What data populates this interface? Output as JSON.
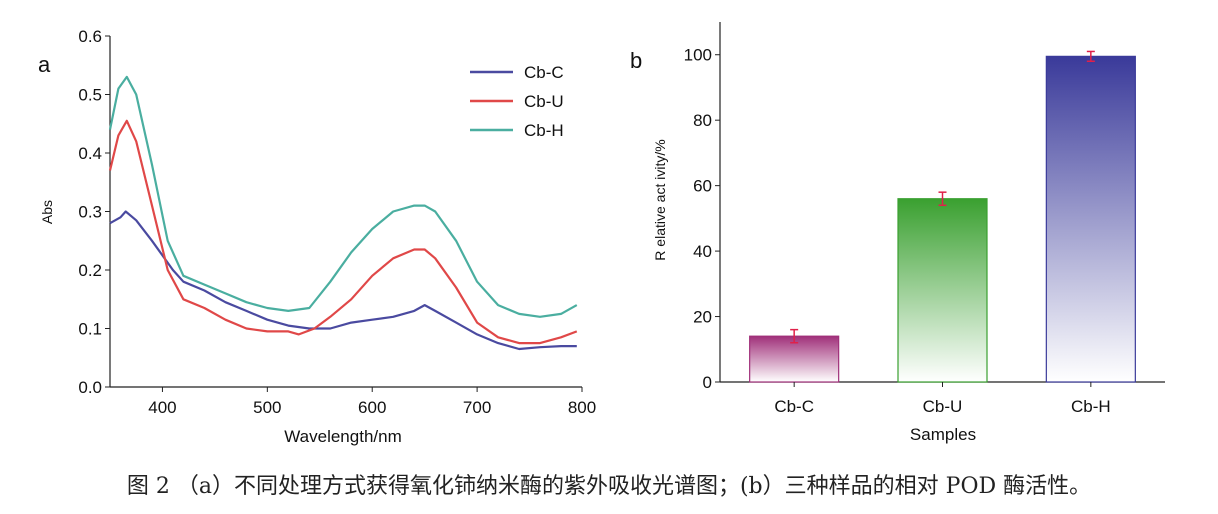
{
  "caption": "图 2 （a）不同处理方式获得氧化铈纳米酶的紫外吸收光谱图；(b）三种样品的相对 POD 酶活性。",
  "chart_data": [
    {
      "type": "line",
      "panel_label": "a",
      "xlabel": "Wavelength/nm",
      "ylabel": "Abs",
      "xlim": [
        350,
        800
      ],
      "ylim": [
        0,
        0.6
      ],
      "xticks": [
        400,
        500,
        600,
        700,
        800
      ],
      "yticks": [
        0.0,
        0.1,
        0.2,
        0.3,
        0.4,
        0.5,
        0.6
      ],
      "legend_position": "top-right",
      "series": [
        {
          "name": "Cb-C",
          "color": "#4a4aa0",
          "x": [
            350,
            360,
            365,
            375,
            390,
            410,
            420,
            440,
            460,
            480,
            500,
            520,
            540,
            560,
            580,
            600,
            620,
            640,
            650,
            660,
            680,
            700,
            720,
            740,
            760,
            780,
            795
          ],
          "y": [
            0.28,
            0.29,
            0.3,
            0.285,
            0.25,
            0.2,
            0.18,
            0.165,
            0.145,
            0.13,
            0.115,
            0.105,
            0.1,
            0.1,
            0.11,
            0.115,
            0.12,
            0.13,
            0.14,
            0.13,
            0.11,
            0.09,
            0.075,
            0.065,
            0.068,
            0.07,
            0.07
          ]
        },
        {
          "name": "Cb-U",
          "color": "#e04848",
          "x": [
            350,
            358,
            366,
            375,
            390,
            405,
            420,
            440,
            460,
            480,
            500,
            520,
            530,
            545,
            560,
            580,
            600,
            620,
            640,
            650,
            660,
            680,
            700,
            720,
            740,
            760,
            780,
            795
          ],
          "y": [
            0.37,
            0.43,
            0.455,
            0.42,
            0.31,
            0.2,
            0.15,
            0.135,
            0.115,
            0.1,
            0.095,
            0.095,
            0.09,
            0.1,
            0.12,
            0.15,
            0.19,
            0.22,
            0.235,
            0.235,
            0.22,
            0.17,
            0.11,
            0.085,
            0.075,
            0.075,
            0.085,
            0.095
          ]
        },
        {
          "name": "Cb-H",
          "color": "#4aaea0",
          "x": [
            350,
            358,
            366,
            375,
            390,
            405,
            420,
            440,
            460,
            480,
            500,
            520,
            540,
            560,
            580,
            600,
            620,
            640,
            650,
            660,
            680,
            700,
            720,
            740,
            760,
            780,
            795
          ],
          "y": [
            0.44,
            0.51,
            0.53,
            0.5,
            0.38,
            0.25,
            0.19,
            0.175,
            0.16,
            0.145,
            0.135,
            0.13,
            0.135,
            0.18,
            0.23,
            0.27,
            0.3,
            0.31,
            0.31,
            0.3,
            0.25,
            0.18,
            0.14,
            0.125,
            0.12,
            0.125,
            0.14
          ]
        }
      ]
    },
    {
      "type": "bar",
      "panel_label": "b",
      "xlabel": "Samples",
      "ylabel": "R elative act ivity/%",
      "ylim": [
        0,
        110
      ],
      "yticks": [
        0,
        20,
        40,
        60,
        80,
        100
      ],
      "categories": [
        "Cb-C",
        "Cb-U",
        "Cb-H"
      ],
      "values": [
        14,
        56,
        99.5
      ],
      "errors": [
        2,
        2,
        1.5
      ],
      "bar_colors": [
        "#a0307a",
        "#3aa030",
        "#3a3a9a"
      ],
      "error_color": "#e0204a"
    }
  ]
}
